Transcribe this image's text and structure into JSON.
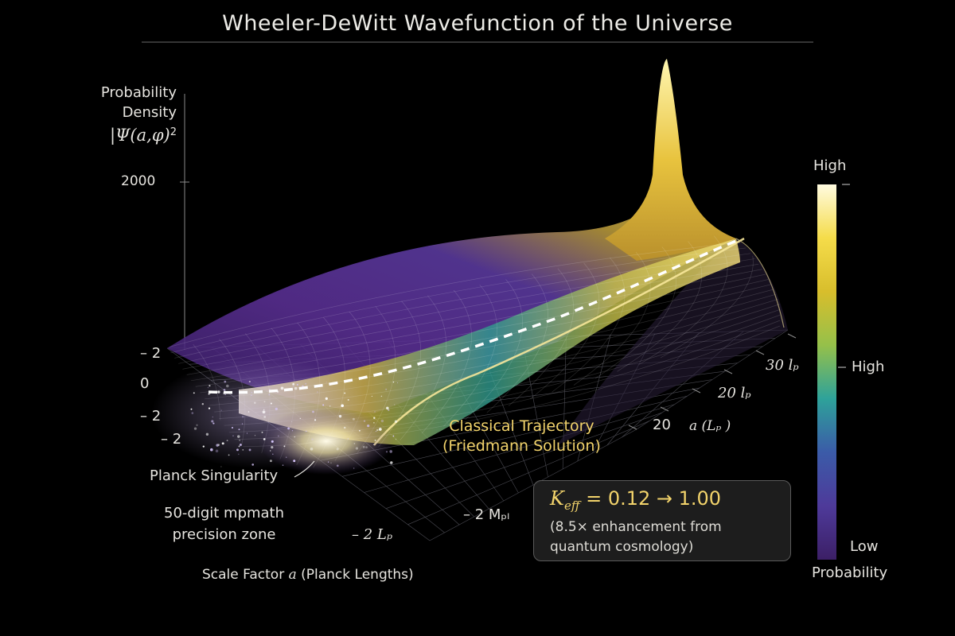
{
  "title": "Wheeler-DeWitt Wavefunction of the Universe",
  "z_axis": {
    "label_line1": "Probability",
    "label_line2": "Density",
    "label_symbol": "|Ψ(a,φ)",
    "label_exp": "2",
    "tick_2000": "2000"
  },
  "phi_ticks": {
    "t1": "– 2",
    "t2": "0",
    "t3": "– 2",
    "t4": "– 2"
  },
  "a_axis": {
    "ticks": {
      "t30": "30 lₚ",
      "t20lp": "20 lₚ",
      "t20": "20"
    },
    "label": "a (Lₚ )",
    "front_tick_lp": "– 2 Lₚ",
    "front_tick_m": "– 2 Mₚₗ"
  },
  "x_axis_label": {
    "prefix": "Scale Factor ",
    "var": "a",
    "suffix": " (Planck Lengths)"
  },
  "annotations": {
    "planck": "Planck Singularity",
    "mpmath_line1": "50-digit mpmath",
    "mpmath_line2": "precision zone",
    "trajectory_line1": "Classical Trajectory",
    "trajectory_line2": "(Friedmann Solution)"
  },
  "keff_box": {
    "symbol": "K",
    "sub": "eff",
    "value": " = 0.12 → 1.00",
    "note": "(8.5× enhancement from quantum cosmology)"
  },
  "colorbar": {
    "top": "High",
    "mid": "High",
    "bottom": "Low",
    "caption": "Probability",
    "colors": [
      "#fffbe0",
      "#f5dc4a",
      "#d8be2c",
      "#95c04a",
      "#2ea29a",
      "#3b5ba8",
      "#4e3a9a",
      "#3c1f66"
    ]
  },
  "chart_data": {
    "type": "surface",
    "title": "Wheeler-DeWitt Wavefunction of the Universe",
    "zlabel": "Probability Density |Ψ(a,φ)|²",
    "xlabel": "Scale Factor a (Planck Lengths)",
    "z_ticks": [
      2000
    ],
    "series": [
      {
        "name": "Classical Trajectory (Friedmann Solution)",
        "style": "dashed"
      }
    ],
    "colorbar": {
      "label": "Probability",
      "min_label": "Low",
      "max_label": "High"
    }
  }
}
